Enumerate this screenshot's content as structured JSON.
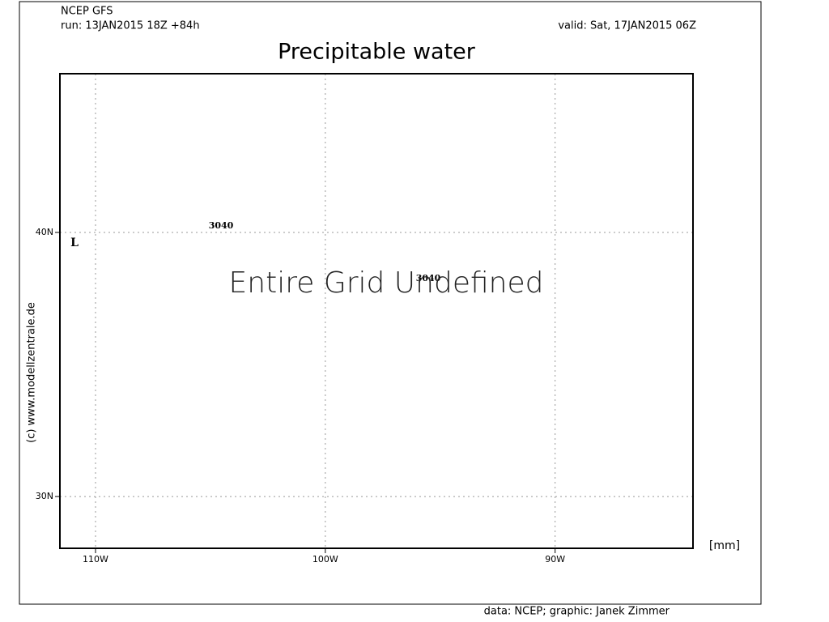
{
  "header": {
    "model": "NCEP GFS",
    "run": "run: 13JAN2015 18Z +84h",
    "valid": "valid: Sat, 17JAN2015 06Z"
  },
  "title": "Precipitable water",
  "map": {
    "xlim": [
      -111.55,
      -84
    ],
    "ylim": [
      28.04,
      46.01
    ],
    "xticks": [
      {
        "value": -110,
        "label": "110W"
      },
      {
        "value": -100,
        "label": "100W"
      },
      {
        "value": -90,
        "label": "90W"
      }
    ],
    "yticks": [
      {
        "value": 30,
        "label": "30N"
      },
      {
        "value": 40,
        "label": "40N"
      }
    ],
    "grid": true,
    "contour_labels": [
      "3040",
      "3040"
    ],
    "low_marker": "L",
    "message": "Entire Grid Undefined"
  },
  "unit": "[mm]",
  "credit_side": "(c) www.modellzentrale.de",
  "footer": "data: NCEP; graphic: Janek Zimmer"
}
